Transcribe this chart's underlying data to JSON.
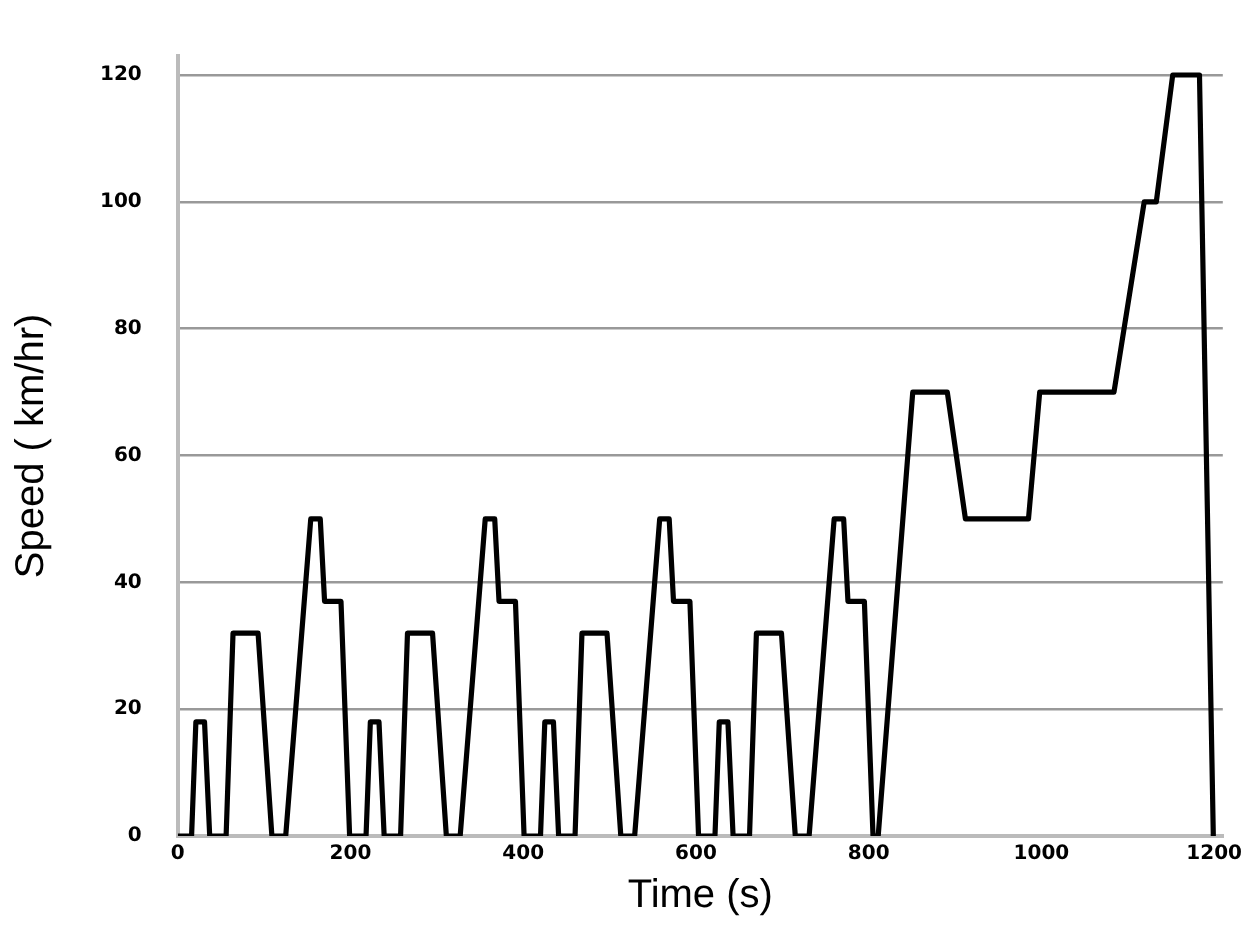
{
  "chart_data": {
    "type": "line",
    "xlabel": "Time (s)",
    "ylabel": "Speed ( km/hr)",
    "series": [
      {
        "color": "#000000",
        "x": [
          0,
          16,
          21,
          31,
          37,
          56,
          64,
          93,
          109,
          125,
          154,
          165,
          170,
          189,
          199,
          218,
          223,
          233,
          239,
          258,
          266,
          295,
          311,
          327,
          356,
          367,
          372,
          391,
          401,
          420,
          425,
          435,
          441,
          460,
          468,
          497,
          513,
          529,
          558,
          569,
          574,
          593,
          603,
          622,
          627,
          637,
          643,
          662,
          670,
          699,
          715,
          731,
          760,
          771,
          776,
          795,
          805,
          811,
          851,
          891,
          912,
          985,
          998,
          1084,
          1119,
          1133,
          1152,
          1183,
          1199
        ],
        "values": [
          0,
          0,
          18,
          18,
          0,
          0,
          32,
          32,
          0,
          0,
          50,
          50,
          37,
          37,
          0,
          0,
          18,
          18,
          0,
          0,
          32,
          32,
          0,
          0,
          50,
          50,
          37,
          37,
          0,
          0,
          18,
          18,
          0,
          0,
          32,
          32,
          0,
          0,
          50,
          50,
          37,
          37,
          0,
          0,
          18,
          18,
          0,
          0,
          32,
          32,
          0,
          0,
          50,
          50,
          37,
          37,
          0,
          0,
          70,
          70,
          50,
          50,
          70,
          70,
          100,
          100,
          120,
          120,
          0
        ]
      }
    ],
    "xlim": [
      0,
      1210
    ],
    "xticks": [
      0,
      200,
      400,
      600,
      800,
      1000,
      1200
    ],
    "ylim": [
      0,
      123
    ],
    "yticks": [
      0,
      20,
      40,
      60,
      80,
      100,
      120
    ],
    "grid": "y",
    "legend": false,
    "marker": "none",
    "line_style": "solid"
  }
}
